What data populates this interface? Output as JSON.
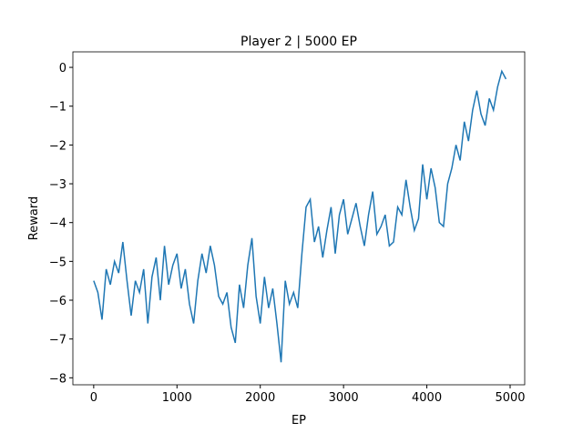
{
  "chart_data": {
    "type": "line",
    "title": "Player 2 | 5000 EP",
    "x_label": "EP",
    "y_label": "Reward",
    "x": [
      0,
      50,
      100,
      150,
      200,
      250,
      300,
      350,
      400,
      450,
      500,
      550,
      600,
      650,
      700,
      750,
      800,
      850,
      900,
      950,
      1000,
      1050,
      1100,
      1150,
      1200,
      1250,
      1300,
      1350,
      1400,
      1450,
      1500,
      1550,
      1600,
      1650,
      1700,
      1750,
      1800,
      1850,
      1900,
      1950,
      2000,
      2050,
      2100,
      2150,
      2200,
      2250,
      2300,
      2350,
      2400,
      2450,
      2500,
      2550,
      2600,
      2650,
      2700,
      2750,
      2800,
      2850,
      2900,
      2950,
      3000,
      3050,
      3100,
      3150,
      3200,
      3250,
      3300,
      3350,
      3400,
      3450,
      3500,
      3550,
      3600,
      3650,
      3700,
      3750,
      3800,
      3850,
      3900,
      3950,
      4000,
      4050,
      4100,
      4150,
      4200,
      4250,
      4300,
      4350,
      4400,
      4450,
      4500,
      4550,
      4600,
      4650,
      4700,
      4750,
      4800,
      4850,
      4900,
      4950
    ],
    "series": [
      {
        "color": "#1f77b4",
        "values": [
          -5.5,
          -5.8,
          -6.5,
          -5.2,
          -5.6,
          -5,
          -5.3,
          -4.5,
          -5.5,
          -6.4,
          -5.5,
          -5.8,
          -5.2,
          -6.6,
          -5.4,
          -4.9,
          -6,
          -4.6,
          -5.6,
          -5.1,
          -4.8,
          -5.7,
          -5.2,
          -6.1,
          -6.6,
          -5.5,
          -4.8,
          -5.3,
          -4.6,
          -5.1,
          -5.9,
          -6.1,
          -5.8,
          -6.7,
          -7.1,
          -5.6,
          -6.2,
          -5.1,
          -4.4,
          -5.9,
          -6.6,
          -5.4,
          -6.2,
          -5.7,
          -6.6,
          -7.6,
          -5.5,
          -6.1,
          -5.8,
          -6.2,
          -4.8,
          -3.6,
          -3.4,
          -4.5,
          -4.1,
          -4.9,
          -4.2,
          -3.6,
          -4.8,
          -3.8,
          -3.4,
          -4.3,
          -3.9,
          -3.5,
          -4.1,
          -4.6,
          -3.8,
          -3.2,
          -4.3,
          -4.1,
          -3.8,
          -4.6,
          -4.5,
          -3.6,
          -3.8,
          -2.9,
          -3.6,
          -4.2,
          -3.9,
          -2.5,
          -3.4,
          -2.6,
          -3.1,
          -4.0,
          -4.1,
          -3.0,
          -2.6,
          -2.0,
          -2.4,
          -1.4,
          -1.9,
          -1.1,
          -0.6,
          -1.2,
          -1.5,
          -0.8,
          -1.1,
          -0.5,
          -0.1,
          -0.3
        ]
      }
    ],
    "xlim": [
      -250,
      5175
    ],
    "ylim": [
      -8.18,
      0.4
    ],
    "xticks": [
      0,
      1000,
      2000,
      3000,
      4000,
      5000
    ],
    "yticks": [
      {
        "value": -8,
        "label": "−8"
      },
      {
        "value": -7,
        "label": "−7"
      },
      {
        "value": -6,
        "label": "−6"
      },
      {
        "value": -5,
        "label": "−5"
      },
      {
        "value": -4,
        "label": "−4"
      },
      {
        "value": -3,
        "label": "−3"
      },
      {
        "value": -2,
        "label": "−2"
      },
      {
        "value": -1,
        "label": "−1"
      },
      0
    ]
  }
}
